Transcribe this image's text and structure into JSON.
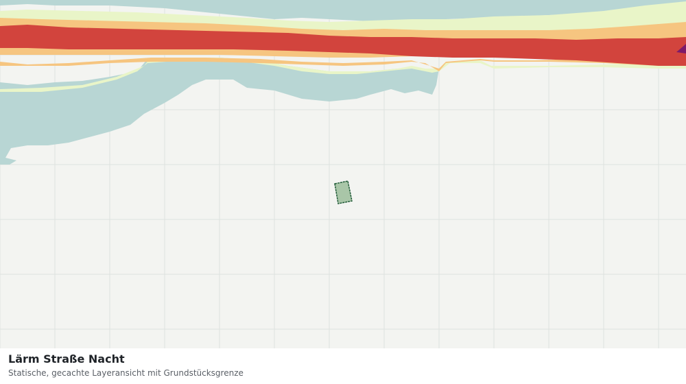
{
  "caption": {
    "title": "Lärm Straße Nacht",
    "subtitle": "Statische, gecachte Layeransicht mit Grundstücksgrenze"
  },
  "map": {
    "view": "static-cached-layer",
    "layer": "Lärm Straße Nacht",
    "colors": {
      "background": "#f3f4f1",
      "grid": "#dee2de",
      "water": "#b8d6d4",
      "noise_band_low": "#e9f5c8",
      "noise_band_mid": "#f6c580",
      "noise_band_high": "#d2443d",
      "noise_band_peak": "#7d1a6a",
      "parcel_fill": "#a9c6a8",
      "parcel_border": "#1f5a36"
    },
    "parcel": {
      "label": "Grundstücksgrenze",
      "icon": "parcel-boundary-icon"
    }
  }
}
